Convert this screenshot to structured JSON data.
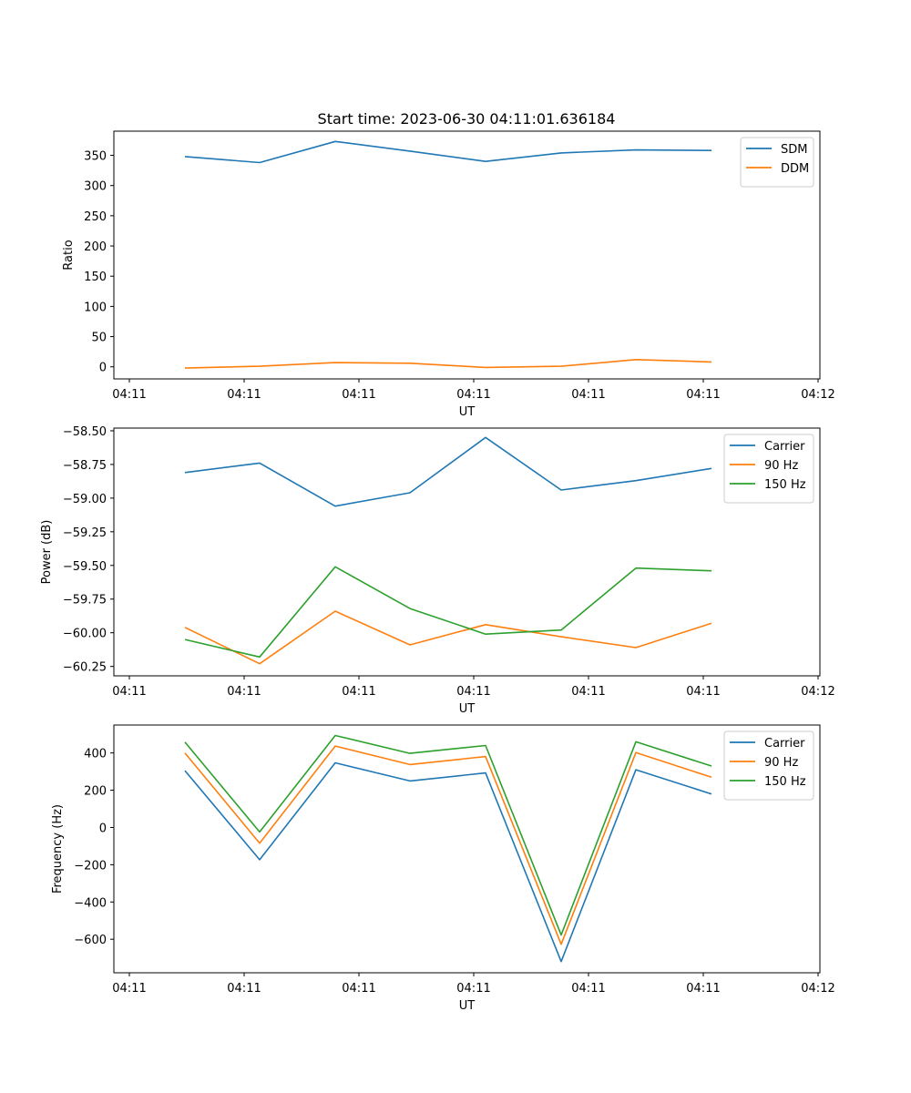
{
  "chart_data": [
    {
      "type": "line",
      "title": "Start time: 2023-06-30 04:11:01.636184",
      "xlabel": "UT",
      "ylabel": "Ratio",
      "x_tick_labels": [
        "04:11",
        "04:11",
        "04:11",
        "04:11",
        "04:11",
        "04:11",
        "04:12"
      ],
      "y_ticks": [
        0,
        50,
        100,
        150,
        200,
        250,
        300,
        350
      ],
      "y_tick_labels": [
        "0",
        "50",
        "100",
        "150",
        "200",
        "250",
        "300",
        "350"
      ],
      "ylim": [
        -20,
        390
      ],
      "grid": false,
      "legend_position": "top-right",
      "series": [
        {
          "name": "SDM",
          "color": "#1f77b4",
          "values": [
            348,
            338,
            373,
            357,
            340,
            354,
            359,
            358
          ]
        },
        {
          "name": "DDM",
          "color": "#ff7f0e",
          "values": [
            -2,
            1,
            7,
            6,
            -1,
            1,
            12,
            8
          ]
        }
      ]
    },
    {
      "type": "line",
      "xlabel": "UT",
      "ylabel": "Power (dB)",
      "x_tick_labels": [
        "04:11",
        "04:11",
        "04:11",
        "04:11",
        "04:11",
        "04:11",
        "04:12"
      ],
      "y_ticks": [
        -60.25,
        -60.0,
        -59.75,
        -59.5,
        -59.25,
        -59.0,
        -58.75,
        -58.5
      ],
      "y_tick_labels": [
        "−60.25",
        "−60.00",
        "−59.75",
        "−59.50",
        "−59.25",
        "−59.00",
        "−58.75",
        "−58.50"
      ],
      "ylim": [
        -60.32,
        -58.48
      ],
      "grid": false,
      "legend_position": "top-right",
      "series": [
        {
          "name": "Carrier",
          "color": "#1f77b4",
          "values": [
            -58.81,
            -58.74,
            -59.06,
            -58.96,
            -58.55,
            -58.94,
            -58.87,
            -58.78
          ]
        },
        {
          "name": "90 Hz",
          "color": "#ff7f0e",
          "values": [
            -59.96,
            -60.23,
            -59.84,
            -60.09,
            -59.94,
            -60.03,
            -60.11,
            -59.93
          ]
        },
        {
          "name": "150 Hz",
          "color": "#2ca02c",
          "values": [
            -60.05,
            -60.18,
            -59.51,
            -59.82,
            -60.01,
            -59.98,
            -59.52,
            -59.54
          ]
        }
      ]
    },
    {
      "type": "line",
      "xlabel": "UT",
      "ylabel": "Frequency (Hz)",
      "x_tick_labels": [
        "04:11",
        "04:11",
        "04:11",
        "04:11",
        "04:11",
        "04:11",
        "04:12"
      ],
      "y_ticks": [
        -600,
        -400,
        -200,
        0,
        200,
        400
      ],
      "y_tick_labels": [
        "−600",
        "−400",
        "−200",
        "0",
        "200",
        "400"
      ],
      "ylim": [
        -780,
        550
      ],
      "grid": false,
      "legend_position": "top-right",
      "series": [
        {
          "name": "Carrier",
          "color": "#1f77b4",
          "values": [
            305,
            -173,
            347,
            250,
            293,
            -720,
            310,
            180
          ]
        },
        {
          "name": "90 Hz",
          "color": "#ff7f0e",
          "values": [
            400,
            -84,
            437,
            338,
            381,
            -627,
            402,
            270
          ]
        },
        {
          "name": "150 Hz",
          "color": "#2ca02c",
          "values": [
            458,
            -24,
            494,
            398,
            440,
            -577,
            460,
            330
          ]
        }
      ]
    }
  ]
}
